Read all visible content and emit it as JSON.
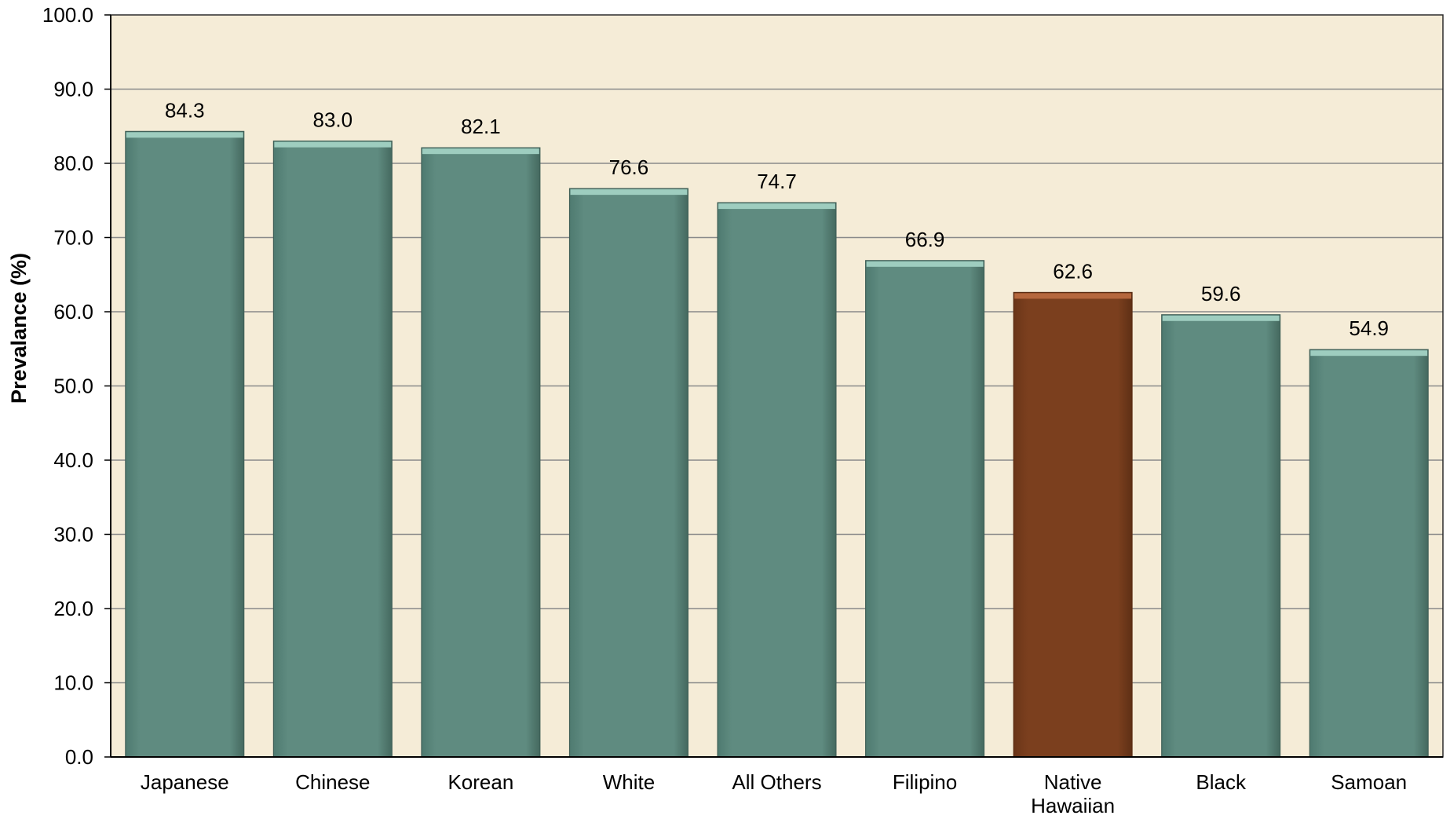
{
  "chart_data": {
    "type": "bar",
    "title": "",
    "xlabel": "",
    "ylabel": "Prevalance (%)",
    "ylim": [
      0,
      100
    ],
    "yticks": [
      "0.0",
      "10.0",
      "20.0",
      "30.0",
      "40.0",
      "50.0",
      "60.0",
      "70.0",
      "80.0",
      "90.0",
      "100.0"
    ],
    "categories": [
      [
        "Japanese"
      ],
      [
        "Chinese"
      ],
      [
        "Korean"
      ],
      [
        "White"
      ],
      [
        "All Others"
      ],
      [
        "Filipino"
      ],
      [
        "Native",
        "Hawaiian"
      ],
      [
        "Black"
      ],
      [
        "Samoan"
      ]
    ],
    "values": [
      84.3,
      83.0,
      82.1,
      76.6,
      74.7,
      66.9,
      62.6,
      59.6,
      54.9
    ],
    "value_labels": [
      "84.3",
      "83.0",
      "82.1",
      "76.6",
      "74.7",
      "66.9",
      "62.6",
      "59.6",
      "54.9"
    ],
    "highlight_index": 6,
    "grid": true,
    "legend": "none",
    "colors": {
      "plot_background": "#f5ecd7",
      "bar": "#5f8b80",
      "bar_top": "#9ecdbf",
      "bar_highlight": "#7b3f1e",
      "bar_highlight_top": "#b5673d",
      "gridline": "#8a8a8a",
      "axis": "#000000"
    }
  }
}
